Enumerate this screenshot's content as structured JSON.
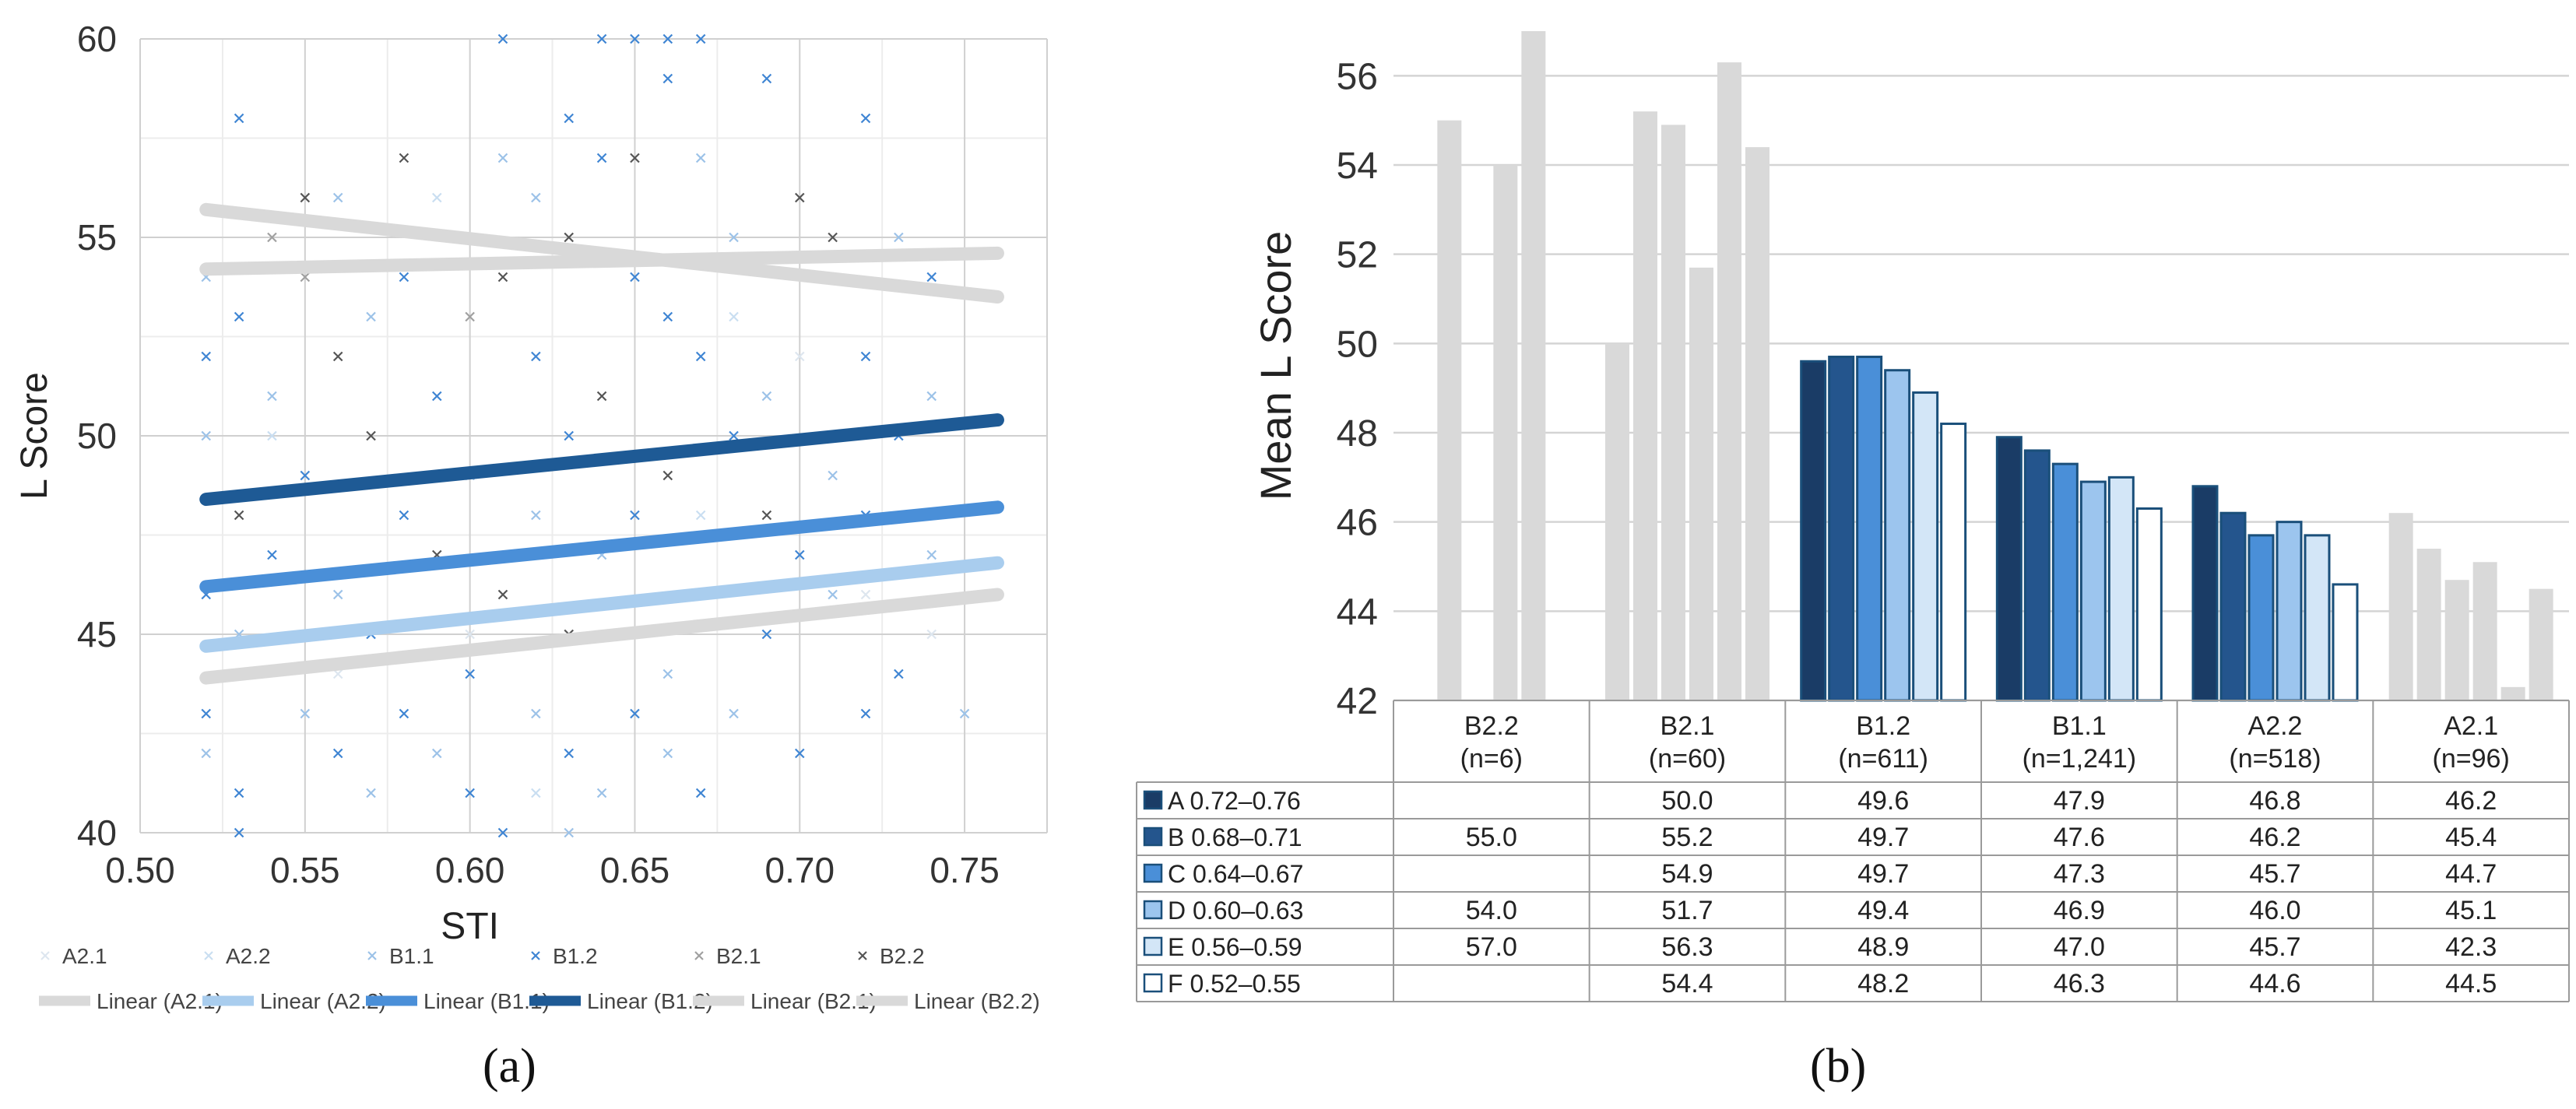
{
  "panel_labels": {
    "a": "(a)",
    "b": "(b)"
  },
  "chart_data": [
    {
      "type": "scatter",
      "panel": "(a)",
      "xlabel": "STI",
      "ylabel": "L Score",
      "xlim": [
        0.5,
        0.75
      ],
      "ylim": [
        40,
        60
      ],
      "xticks": [
        "0.50",
        "0.55",
        "0.60",
        "0.65",
        "0.70",
        "0.75"
      ],
      "yticks": [
        "40",
        "45",
        "50",
        "55",
        "60"
      ],
      "grid": true,
      "legend_position": "bottom",
      "scatter_points": [
        {
          "x": 0.53,
          "y": 58,
          "s": "B1.2"
        },
        {
          "x": 0.61,
          "y": 60,
          "s": "B1.2"
        },
        {
          "x": 0.64,
          "y": 60,
          "s": "B1.2"
        },
        {
          "x": 0.65,
          "y": 60,
          "s": "B1.2"
        },
        {
          "x": 0.66,
          "y": 60,
          "s": "B1.2"
        },
        {
          "x": 0.67,
          "y": 60,
          "s": "B1.2"
        },
        {
          "x": 0.58,
          "y": 57,
          "s": "B2.2"
        },
        {
          "x": 0.61,
          "y": 57,
          "s": "B1.1"
        },
        {
          "x": 0.64,
          "y": 57,
          "s": "B1.2"
        },
        {
          "x": 0.66,
          "y": 59,
          "s": "B1.2"
        },
        {
          "x": 0.69,
          "y": 59,
          "s": "B1.2"
        },
        {
          "x": 0.72,
          "y": 58,
          "s": "B1.2"
        },
        {
          "x": 0.55,
          "y": 56,
          "s": "B2.2"
        },
        {
          "x": 0.56,
          "y": 56,
          "s": "B1.1"
        },
        {
          "x": 0.62,
          "y": 56,
          "s": "B1.1"
        },
        {
          "x": 0.63,
          "y": 58,
          "s": "B1.2"
        },
        {
          "x": 0.65,
          "y": 57,
          "s": "B2.2"
        },
        {
          "x": 0.67,
          "y": 57,
          "s": "B1.1"
        },
        {
          "x": 0.52,
          "y": 54,
          "s": "B1.1"
        },
        {
          "x": 0.53,
          "y": 53,
          "s": "B1.2"
        },
        {
          "x": 0.55,
          "y": 54,
          "s": "B2.1"
        },
        {
          "x": 0.58,
          "y": 54,
          "s": "B1.2"
        },
        {
          "x": 0.61,
          "y": 54,
          "s": "B2.2"
        },
        {
          "x": 0.63,
          "y": 55,
          "s": "B2.2"
        },
        {
          "x": 0.66,
          "y": 53,
          "s": "B1.2"
        },
        {
          "x": 0.68,
          "y": 55,
          "s": "B1.1"
        },
        {
          "x": 0.7,
          "y": 56,
          "s": "B2.2"
        },
        {
          "x": 0.71,
          "y": 55,
          "s": "B2.2"
        },
        {
          "x": 0.73,
          "y": 55,
          "s": "B1.1"
        },
        {
          "x": 0.74,
          "y": 54,
          "s": "B1.2"
        },
        {
          "x": 0.52,
          "y": 52,
          "s": "B1.2"
        },
        {
          "x": 0.54,
          "y": 51,
          "s": "B1.1"
        },
        {
          "x": 0.56,
          "y": 52,
          "s": "B2.2"
        },
        {
          "x": 0.59,
          "y": 51,
          "s": "B1.2"
        },
        {
          "x": 0.62,
          "y": 52,
          "s": "B1.2"
        },
        {
          "x": 0.64,
          "y": 51,
          "s": "B2.2"
        },
        {
          "x": 0.67,
          "y": 52,
          "s": "B1.2"
        },
        {
          "x": 0.69,
          "y": 51,
          "s": "B1.1"
        },
        {
          "x": 0.72,
          "y": 52,
          "s": "B1.2"
        },
        {
          "x": 0.74,
          "y": 51,
          "s": "B1.1"
        },
        {
          "x": 0.57,
          "y": 53,
          "s": "B1.1"
        },
        {
          "x": 0.65,
          "y": 54,
          "s": "B1.2"
        },
        {
          "x": 0.52,
          "y": 50,
          "s": "B1.1"
        },
        {
          "x": 0.55,
          "y": 49,
          "s": "B1.2"
        },
        {
          "x": 0.57,
          "y": 50,
          "s": "B2.2"
        },
        {
          "x": 0.6,
          "y": 49,
          "s": "B1.1"
        },
        {
          "x": 0.63,
          "y": 50,
          "s": "B1.2"
        },
        {
          "x": 0.66,
          "y": 49,
          "s": "B2.2"
        },
        {
          "x": 0.68,
          "y": 50,
          "s": "B1.2"
        },
        {
          "x": 0.71,
          "y": 49,
          "s": "B1.1"
        },
        {
          "x": 0.73,
          "y": 50,
          "s": "B1.2"
        },
        {
          "x": 0.53,
          "y": 48,
          "s": "B2.2"
        },
        {
          "x": 0.58,
          "y": 48,
          "s": "B1.2"
        },
        {
          "x": 0.62,
          "y": 48,
          "s": "B1.1"
        },
        {
          "x": 0.65,
          "y": 48,
          "s": "B1.2"
        },
        {
          "x": 0.69,
          "y": 48,
          "s": "B2.2"
        },
        {
          "x": 0.72,
          "y": 48,
          "s": "B1.2"
        },
        {
          "x": 0.54,
          "y": 47,
          "s": "B1.2"
        },
        {
          "x": 0.59,
          "y": 47,
          "s": "B2.2"
        },
        {
          "x": 0.64,
          "y": 47,
          "s": "B1.1"
        },
        {
          "x": 0.7,
          "y": 47,
          "s": "B1.2"
        },
        {
          "x": 0.74,
          "y": 47,
          "s": "B1.1"
        },
        {
          "x": 0.52,
          "y": 46,
          "s": "B1.2"
        },
        {
          "x": 0.56,
          "y": 46,
          "s": "B1.1"
        },
        {
          "x": 0.61,
          "y": 46,
          "s": "B2.2"
        },
        {
          "x": 0.67,
          "y": 46,
          "s": "B1.2"
        },
        {
          "x": 0.71,
          "y": 46,
          "s": "B1.1"
        },
        {
          "x": 0.53,
          "y": 45,
          "s": "B1.1"
        },
        {
          "x": 0.57,
          "y": 45,
          "s": "B1.2"
        },
        {
          "x": 0.6,
          "y": 44,
          "s": "B1.2"
        },
        {
          "x": 0.63,
          "y": 45,
          "s": "B2.2"
        },
        {
          "x": 0.66,
          "y": 44,
          "s": "B1.1"
        },
        {
          "x": 0.69,
          "y": 45,
          "s": "B1.2"
        },
        {
          "x": 0.73,
          "y": 44,
          "s": "B1.2"
        },
        {
          "x": 0.52,
          "y": 43,
          "s": "B1.2"
        },
        {
          "x": 0.55,
          "y": 43,
          "s": "B1.1"
        },
        {
          "x": 0.58,
          "y": 43,
          "s": "B1.2"
        },
        {
          "x": 0.62,
          "y": 43,
          "s": "B1.1"
        },
        {
          "x": 0.65,
          "y": 43,
          "s": "B1.2"
        },
        {
          "x": 0.68,
          "y": 43,
          "s": "B1.1"
        },
        {
          "x": 0.72,
          "y": 43,
          "s": "B1.2"
        },
        {
          "x": 0.75,
          "y": 43,
          "s": "B1.1"
        },
        {
          "x": 0.52,
          "y": 42,
          "s": "B1.1"
        },
        {
          "x": 0.56,
          "y": 42,
          "s": "B1.2"
        },
        {
          "x": 0.59,
          "y": 42,
          "s": "B1.1"
        },
        {
          "x": 0.63,
          "y": 42,
          "s": "B1.2"
        },
        {
          "x": 0.66,
          "y": 42,
          "s": "B1.1"
        },
        {
          "x": 0.7,
          "y": 42,
          "s": "B1.2"
        },
        {
          "x": 0.53,
          "y": 41,
          "s": "B1.2"
        },
        {
          "x": 0.57,
          "y": 41,
          "s": "B1.1"
        },
        {
          "x": 0.6,
          "y": 41,
          "s": "B1.2"
        },
        {
          "x": 0.64,
          "y": 41,
          "s": "B1.1"
        },
        {
          "x": 0.67,
          "y": 41,
          "s": "B1.2"
        },
        {
          "x": 0.53,
          "y": 40,
          "s": "B1.2"
        },
        {
          "x": 0.61,
          "y": 40,
          "s": "B1.2"
        },
        {
          "x": 0.63,
          "y": 40,
          "s": "B1.1"
        },
        {
          "x": 0.54,
          "y": 55,
          "s": "B2.1"
        },
        {
          "x": 0.6,
          "y": 53,
          "s": "B2.1"
        },
        {
          "x": 0.68,
          "y": 53,
          "s": "A2.2"
        },
        {
          "x": 0.56,
          "y": 44,
          "s": "A2.1"
        },
        {
          "x": 0.62,
          "y": 41,
          "s": "A2.2"
        },
        {
          "x": 0.74,
          "y": 45,
          "s": "A2.1"
        },
        {
          "x": 0.59,
          "y": 56,
          "s": "A2.2"
        },
        {
          "x": 0.7,
          "y": 52,
          "s": "A2.1"
        },
        {
          "x": 0.54,
          "y": 50,
          "s": "A2.2"
        },
        {
          "x": 0.6,
          "y": 45,
          "s": "A2.1"
        },
        {
          "x": 0.67,
          "y": 48,
          "s": "A2.2"
        },
        {
          "x": 0.72,
          "y": 46,
          "s": "A2.1"
        }
      ],
      "series": [
        {
          "name": "Linear (A2.1)",
          "x": [
            0.52,
            0.76
          ],
          "y": [
            43.9,
            46.0
          ],
          "color": "#d9d9d9"
        },
        {
          "name": "Linear (A2.2)",
          "x": [
            0.52,
            0.76
          ],
          "y": [
            44.7,
            46.8
          ],
          "color": "#a9cdee"
        },
        {
          "name": "Linear (B1.1)",
          "x": [
            0.52,
            0.76
          ],
          "y": [
            46.2,
            48.2
          ],
          "color": "#4a8fd8"
        },
        {
          "name": "Linear (B1.2)",
          "x": [
            0.52,
            0.76
          ],
          "y": [
            48.4,
            50.4
          ],
          "color": "#1e5a95"
        },
        {
          "name": "Linear (B2.1)",
          "x": [
            0.52,
            0.76
          ],
          "y": [
            55.7,
            53.5
          ],
          "color": "#d9d9d9"
        },
        {
          "name": "Linear (B2.2)",
          "x": [
            0.52,
            0.76
          ],
          "y": [
            54.2,
            54.6
          ],
          "color": "#d9d9d9"
        }
      ],
      "legend": [
        {
          "label": "A2.1",
          "marker": "x",
          "color": "#dde6ef"
        },
        {
          "label": "A2.2",
          "marker": "x",
          "color": "#c9def1"
        },
        {
          "label": "B1.1",
          "marker": "x",
          "color": "#9cc2e8"
        },
        {
          "label": "B1.2",
          "marker": "x",
          "color": "#3f85d3"
        },
        {
          "label": "B2.1",
          "marker": "x",
          "color": "#a0a0a0"
        },
        {
          "label": "B2.2",
          "marker": "x",
          "color": "#555555"
        },
        {
          "label": "Linear (A2.1)",
          "marker": "line",
          "color": "#d9d9d9"
        },
        {
          "label": "Linear (A2.2)",
          "marker": "line",
          "color": "#a9cdee"
        },
        {
          "label": "Linear (B1.1)",
          "marker": "line",
          "color": "#4a8fd8"
        },
        {
          "label": "Linear (B1.2)",
          "marker": "line",
          "color": "#1e5a95"
        },
        {
          "label": "Linear (B2.1)",
          "marker": "line",
          "color": "#d9d9d9"
        },
        {
          "label": "Linear (B2.2)",
          "marker": "line",
          "color": "#d9d9d9"
        }
      ]
    },
    {
      "type": "bar",
      "panel": "(b)",
      "ylabel": "Mean L Score",
      "ylim": [
        42,
        57
      ],
      "yticks": [
        "42",
        "44",
        "46",
        "48",
        "50",
        "52",
        "54",
        "56"
      ],
      "grid": true,
      "categories": [
        {
          "name": "B2.2",
          "n": "(n=6)",
          "highlight": false
        },
        {
          "name": "B2.1",
          "n": "(n=60)",
          "highlight": false
        },
        {
          "name": "B1.2",
          "n": "(n=611)",
          "highlight": true
        },
        {
          "name": "B1.1",
          "n": "(n=1,241)",
          "highlight": true
        },
        {
          "name": "A2.2",
          "n": "(n=518)",
          "highlight": true
        },
        {
          "name": "A2.1",
          "n": "(n=96)",
          "highlight": false
        }
      ],
      "series": [
        {
          "name": "A 0.72–0.76",
          "color": "#1a3c66",
          "values": [
            null,
            50.0,
            49.6,
            47.9,
            46.8,
            46.2
          ],
          "labels": [
            "",
            "50.0",
            "49.6",
            "47.9",
            "46.8",
            "46.2"
          ]
        },
        {
          "name": "B 0.68–0.71",
          "color": "#24558d",
          "values": [
            55.0,
            55.2,
            49.7,
            47.6,
            46.2,
            45.4
          ],
          "labels": [
            "55.0",
            "55.2",
            "49.7",
            "47.6",
            "46.2",
            "45.4"
          ]
        },
        {
          "name": "C 0.64–0.67",
          "color": "#4a8fd8",
          "values": [
            null,
            54.9,
            49.7,
            47.3,
            45.7,
            44.7
          ],
          "labels": [
            "",
            "54.9",
            "49.7",
            "47.3",
            "45.7",
            "44.7"
          ]
        },
        {
          "name": "D 0.60–0.63",
          "color": "#9cc5ee",
          "values": [
            54.0,
            51.7,
            49.4,
            46.9,
            46.0,
            45.1
          ],
          "labels": [
            "54.0",
            "51.7",
            "49.4",
            "46.9",
            "46.0",
            "45.1"
          ]
        },
        {
          "name": "E 0.56–0.59",
          "color": "#d3e6f7",
          "values": [
            57.0,
            56.3,
            48.9,
            47.0,
            45.7,
            42.3
          ],
          "labels": [
            "57.0",
            "56.3",
            "48.9",
            "47.0",
            "45.7",
            "42.3"
          ]
        },
        {
          "name": "F 0.52–0.55",
          "color": "#ffffff",
          "values": [
            null,
            54.4,
            48.2,
            46.3,
            44.6,
            44.5
          ],
          "labels": [
            "",
            "54.4",
            "48.2",
            "46.3",
            "44.6",
            "44.5"
          ]
        }
      ],
      "grey_color": "#d9d9d9",
      "border_color": "#1a4f7a"
    }
  ]
}
